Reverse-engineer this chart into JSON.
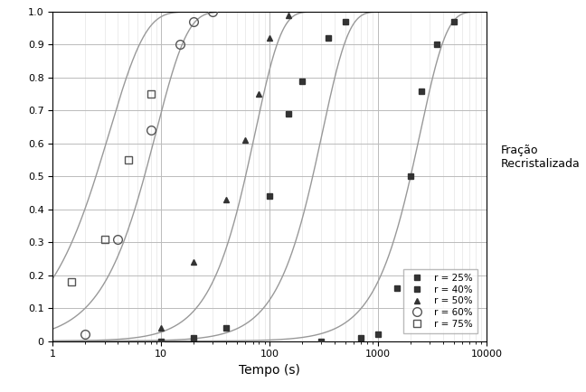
{
  "title": "",
  "xlabel": "Tempo (s)",
  "ylabel_text": "Fração\nRecristalizada",
  "xlim": [
    1,
    10000
  ],
  "ylim": [
    0,
    1.0
  ],
  "yticks": [
    0,
    0.1,
    0.2,
    0.3,
    0.4,
    0.5,
    0.6,
    0.7,
    0.8,
    0.9,
    1
  ],
  "curve_color": "#999999",
  "background_color": "#ffffff",
  "grid_major_color": "#bbbbbb",
  "grid_minor_color": "#dddddd",
  "series": [
    {
      "label": "r = 25%",
      "marker": "s",
      "fillstyle": "full",
      "color": "#333333",
      "markersize": 5,
      "t50": 2000,
      "n": 1.8,
      "data_x": [
        300,
        700,
        1000,
        1500,
        2000,
        2500,
        3500,
        5000
      ],
      "data_y": [
        0.0,
        0.01,
        0.02,
        0.16,
        0.5,
        0.76,
        0.9,
        0.97
      ]
    },
    {
      "label": "r = 40%",
      "marker": "s",
      "fillstyle": "full",
      "color": "#333333",
      "markersize": 5,
      "t50": 250,
      "n": 1.8,
      "data_x": [
        10,
        20,
        40,
        100,
        150,
        200,
        350,
        500
      ],
      "data_y": [
        0.0,
        0.01,
        0.04,
        0.44,
        0.69,
        0.79,
        0.92,
        0.97
      ]
    },
    {
      "label": "r = 50%",
      "marker": "^",
      "fillstyle": "full",
      "color": "#333333",
      "markersize": 5,
      "t50": 60,
      "n": 1.8,
      "data_x": [
        10,
        20,
        40,
        60,
        80,
        100,
        150
      ],
      "data_y": [
        0.04,
        0.24,
        0.43,
        0.61,
        0.75,
        0.92,
        0.99
      ]
    },
    {
      "label": "r = 60%",
      "marker": "o",
      "fillstyle": "none",
      "color": "#555555",
      "markersize": 7,
      "t50": 7,
      "n": 1.5,
      "data_x": [
        2,
        4,
        8,
        15,
        20,
        30
      ],
      "data_y": [
        0.02,
        0.31,
        0.64,
        0.9,
        0.97,
        1.0
      ]
    },
    {
      "label": "r = 75%",
      "marker": "s",
      "fillstyle": "none",
      "color": "#555555",
      "markersize": 6,
      "t50": 2.5,
      "n": 1.3,
      "data_x": [
        1.5,
        3,
        5,
        8
      ],
      "data_y": [
        0.18,
        0.31,
        0.55,
        0.75
      ]
    }
  ]
}
